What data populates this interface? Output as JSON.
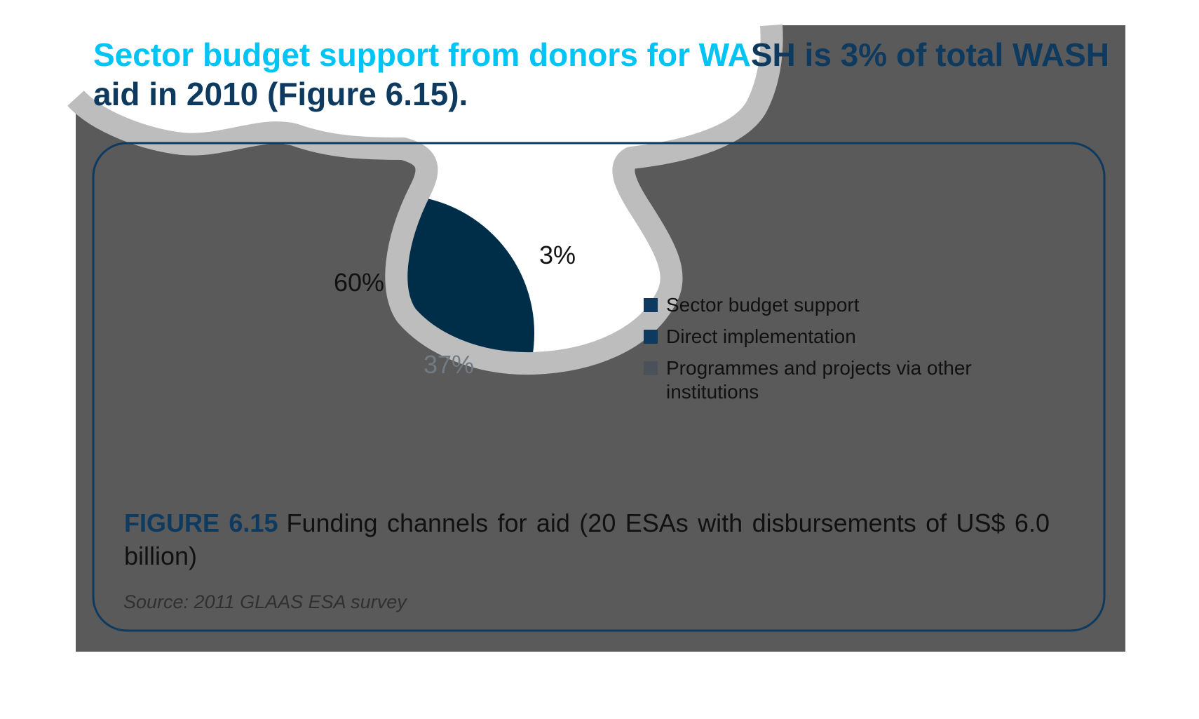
{
  "headline": {
    "highlight": "Sector budget support from donors for WA",
    "rest": "SH is 3% of total WASH aid in 2010 (Figure 6.15)."
  },
  "chart_data": {
    "type": "pie",
    "slices": [
      {
        "label": "Sector budget support",
        "value": 3,
        "display": "3%",
        "color": "#0a6ab8"
      },
      {
        "label": "Direct implementation",
        "value": 37,
        "display": "37%",
        "color": "#00c4f4"
      },
      {
        "label": "Programmes and projects via other institutions",
        "value": 60,
        "display": "60%",
        "color": "#a3b5c4"
      }
    ],
    "legend": [
      {
        "label": "Sector budget support",
        "color": "#0d3a5e"
      },
      {
        "label": "Direct implementation",
        "color": "#0d3a5e"
      },
      {
        "label": "Programmes and projects via other institutions",
        "color": "#4a5158"
      }
    ],
    "legend_position": "right"
  },
  "figure": {
    "label": "FIGURE 6.15",
    "caption": "Funding channels for aid (20 ESAs with disbursements of US$ 6.0 billion)",
    "source": "Source: 2011 GLAAS ESA survey"
  },
  "colors": {
    "overlay": "#5a5a5a",
    "highlight": "#00c4f4",
    "frame": "#0d3a5e",
    "dark_blue": "#0d3a5e"
  }
}
